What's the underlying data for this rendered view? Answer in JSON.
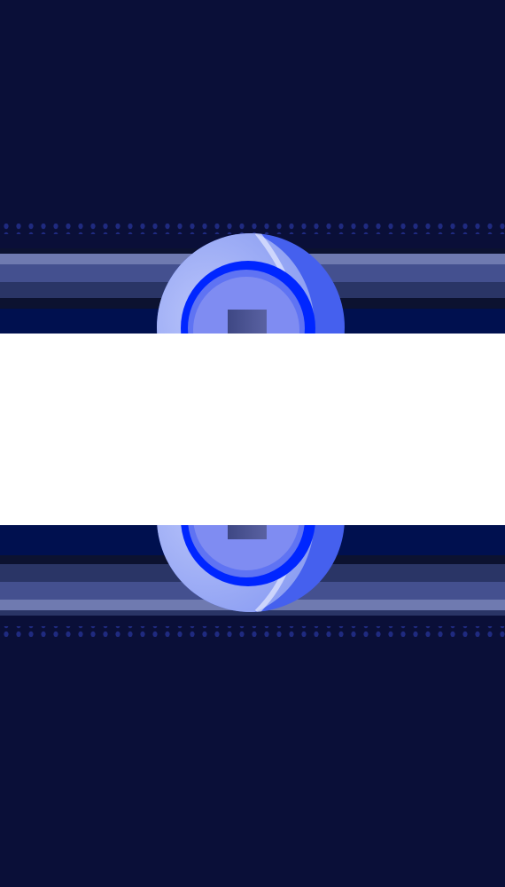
{
  "colors": {
    "background": "#0a0f38",
    "band_dark": "#00104f",
    "band_shadow": "#0c1230",
    "stripe_dark": "#2a3566",
    "stripe_mid": "#44508f",
    "stripe_light": "#6f7ab0",
    "dot": "#1f2a80",
    "orb_outer": "#4560ee",
    "orb_light": "#8ea0f3",
    "orb_blue": "#0026ff",
    "orb_inner": "#7f8cf2",
    "hole": "#474f8f",
    "panel": "#ffffff"
  },
  "icons": {
    "top_control": "blue-orb-pause-icon",
    "bottom_control": "blue-orb-pause-icon-reflection"
  }
}
